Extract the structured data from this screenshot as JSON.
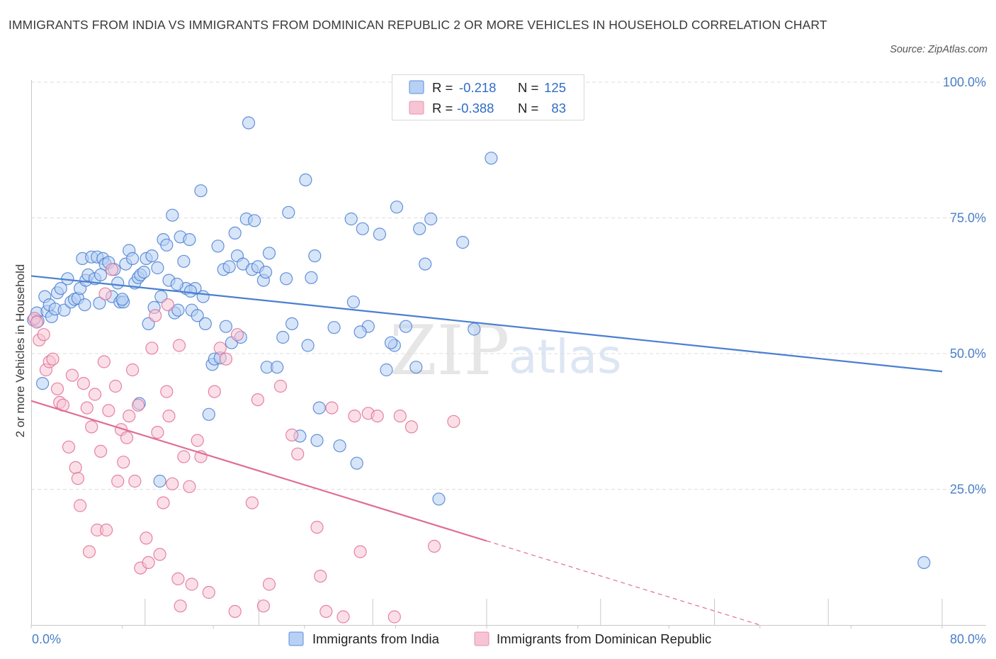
{
  "title": "IMMIGRANTS FROM INDIA VS IMMIGRANTS FROM DOMINICAN REPUBLIC 2 OR MORE VEHICLES IN HOUSEHOLD CORRELATION CHART",
  "source": "Source: ZipAtlas.com",
  "watermark": {
    "zip": "ZIP",
    "atlas": "atlas"
  },
  "legend": {
    "r_label": "R =",
    "n_label": "N =",
    "rows": [
      {
        "r": "-0.218",
        "n": "125",
        "color": "#5b8fdb",
        "fill": "#b7d0f4"
      },
      {
        "r": "-0.388",
        "n": "83",
        "color": "#e891ad",
        "fill": "#f7c4d4"
      }
    ]
  },
  "chart_data": {
    "type": "scatter",
    "ylabel": "2 or more Vehicles in Household",
    "xlabel": "",
    "xlim": [
      0,
      80
    ],
    "ylim": [
      0,
      100
    ],
    "x_tick_labels": [
      "0.0%",
      "80.0%"
    ],
    "y_ticks": [
      25,
      50,
      75,
      100
    ],
    "y_tick_labels": [
      "25.0%",
      "50.0%",
      "75.0%",
      "100.0%"
    ],
    "grid": "horizontal dashed",
    "legend_position": "top-center",
    "series": [
      {
        "name": "Immigrants from India",
        "color": "#4a7fd1",
        "fill": "#b7d0f4",
        "trend": {
          "x": [
            0,
            80
          ],
          "y": [
            64.3,
            46.7
          ],
          "solid_to": 80
        },
        "points": [
          [
            0.2,
            56.2
          ],
          [
            0.5,
            57.5
          ],
          [
            0.6,
            56.0
          ],
          [
            1.0,
            44.5
          ],
          [
            1.2,
            60.5
          ],
          [
            1.4,
            57.8
          ],
          [
            1.6,
            59.0
          ],
          [
            1.8,
            56.8
          ],
          [
            2.1,
            58.2
          ],
          [
            2.3,
            61.2
          ],
          [
            2.6,
            62.0
          ],
          [
            2.9,
            58.0
          ],
          [
            3.2,
            63.8
          ],
          [
            3.5,
            59.5
          ],
          [
            3.8,
            60.0
          ],
          [
            4.1,
            60.2
          ],
          [
            4.3,
            62.0
          ],
          [
            4.5,
            67.5
          ],
          [
            4.8,
            63.5
          ],
          [
            5.0,
            64.5
          ],
          [
            5.3,
            67.8
          ],
          [
            5.6,
            63.8
          ],
          [
            5.8,
            67.8
          ],
          [
            6.1,
            64.5
          ],
          [
            6.3,
            67.5
          ],
          [
            6.5,
            66.5
          ],
          [
            6.8,
            66.8
          ],
          [
            7.1,
            60.5
          ],
          [
            7.3,
            65.5
          ],
          [
            7.6,
            63.0
          ],
          [
            7.8,
            59.5
          ],
          [
            8.1,
            59.5
          ],
          [
            8.3,
            66.5
          ],
          [
            8.6,
            69.0
          ],
          [
            8.9,
            67.5
          ],
          [
            9.1,
            63.0
          ],
          [
            9.4,
            64.0
          ],
          [
            9.6,
            64.5
          ],
          [
            9.9,
            65.0
          ],
          [
            10.1,
            67.5
          ],
          [
            10.3,
            55.5
          ],
          [
            10.6,
            68.0
          ],
          [
            10.8,
            58.5
          ],
          [
            11.1,
            65.8
          ],
          [
            11.4,
            60.5
          ],
          [
            11.6,
            71.0
          ],
          [
            11.9,
            70.0
          ],
          [
            12.1,
            63.5
          ],
          [
            12.4,
            75.5
          ],
          [
            12.6,
            57.5
          ],
          [
            12.9,
            58.0
          ],
          [
            13.1,
            71.5
          ],
          [
            13.4,
            67.0
          ],
          [
            13.6,
            62.0
          ],
          [
            13.9,
            71.0
          ],
          [
            14.1,
            58.0
          ],
          [
            14.4,
            62.0
          ],
          [
            14.6,
            57.0
          ],
          [
            14.9,
            80.0
          ],
          [
            15.1,
            60.5
          ],
          [
            15.3,
            55.5
          ],
          [
            15.6,
            38.8
          ],
          [
            15.9,
            48.0
          ],
          [
            16.1,
            49.0
          ],
          [
            16.4,
            69.8
          ],
          [
            16.6,
            49.2
          ],
          [
            16.9,
            65.5
          ],
          [
            17.1,
            55.0
          ],
          [
            17.4,
            66.0
          ],
          [
            17.6,
            52.0
          ],
          [
            17.9,
            72.2
          ],
          [
            18.1,
            68.0
          ],
          [
            18.4,
            53.0
          ],
          [
            18.6,
            66.5
          ],
          [
            18.9,
            74.8
          ],
          [
            19.1,
            92.5
          ],
          [
            19.4,
            65.5
          ],
          [
            19.6,
            74.5
          ],
          [
            19.9,
            66.0
          ],
          [
            20.4,
            63.5
          ],
          [
            20.6,
            65.0
          ],
          [
            20.9,
            68.5
          ],
          [
            20.7,
            47.5
          ],
          [
            21.6,
            47.5
          ],
          [
            22.1,
            53.0
          ],
          [
            22.4,
            63.8
          ],
          [
            22.6,
            76.0
          ],
          [
            22.9,
            55.5
          ],
          [
            23.6,
            34.8
          ],
          [
            24.1,
            82.0
          ],
          [
            24.3,
            51.5
          ],
          [
            24.6,
            64.0
          ],
          [
            24.9,
            68.0
          ],
          [
            25.1,
            34.0
          ],
          [
            25.3,
            40.0
          ],
          [
            26.6,
            54.8
          ],
          [
            27.1,
            33.0
          ],
          [
            28.1,
            74.8
          ],
          [
            28.3,
            59.5
          ],
          [
            28.6,
            29.8
          ],
          [
            29.1,
            73.0
          ],
          [
            29.6,
            55.0
          ],
          [
            30.6,
            72.0
          ],
          [
            31.9,
            51.5
          ],
          [
            32.1,
            77.0
          ],
          [
            31.6,
            52.0
          ],
          [
            32.9,
            55.0
          ],
          [
            34.1,
            73.0
          ],
          [
            34.6,
            66.5
          ],
          [
            35.1,
            74.8
          ],
          [
            35.8,
            23.2
          ],
          [
            37.9,
            70.5
          ],
          [
            38.9,
            54.5
          ],
          [
            40.4,
            86.0
          ],
          [
            78.4,
            11.5
          ],
          [
            9.5,
            40.8
          ],
          [
            11.3,
            26.5
          ],
          [
            33.8,
            47.5
          ],
          [
            31.2,
            47.0
          ],
          [
            28.9,
            54.0
          ],
          [
            14.0,
            61.5
          ],
          [
            12.8,
            62.8
          ],
          [
            4.7,
            59.0
          ],
          [
            6.0,
            59.3
          ],
          [
            8.0,
            60.0
          ]
        ]
      },
      {
        "name": "Immigrants from Dominican Republic",
        "color": "#e06e96",
        "fill": "#f7c4d4",
        "trend": {
          "x": [
            0,
            64
          ],
          "y": [
            41.3,
            0
          ],
          "solid_to": 40
        },
        "points": [
          [
            0.3,
            56.5
          ],
          [
            0.5,
            55.8
          ],
          [
            0.7,
            52.5
          ],
          [
            1.1,
            53.5
          ],
          [
            1.3,
            47.0
          ],
          [
            1.6,
            48.5
          ],
          [
            1.9,
            49.0
          ],
          [
            2.3,
            43.5
          ],
          [
            2.5,
            41.0
          ],
          [
            2.8,
            40.5
          ],
          [
            3.3,
            32.8
          ],
          [
            3.6,
            46.0
          ],
          [
            3.9,
            29.0
          ],
          [
            4.1,
            27.0
          ],
          [
            4.3,
            22.0
          ],
          [
            4.6,
            44.5
          ],
          [
            4.9,
            40.0
          ],
          [
            5.1,
            13.5
          ],
          [
            5.3,
            36.5
          ],
          [
            5.6,
            42.5
          ],
          [
            5.8,
            17.5
          ],
          [
            6.1,
            32.0
          ],
          [
            6.4,
            48.5
          ],
          [
            6.6,
            17.5
          ],
          [
            6.8,
            39.5
          ],
          [
            7.1,
            65.5
          ],
          [
            7.4,
            44.0
          ],
          [
            7.6,
            26.5
          ],
          [
            7.9,
            36.0
          ],
          [
            8.1,
            30.0
          ],
          [
            8.4,
            34.5
          ],
          [
            8.6,
            38.5
          ],
          [
            8.9,
            47.0
          ],
          [
            9.1,
            26.5
          ],
          [
            9.4,
            40.5
          ],
          [
            9.6,
            10.5
          ],
          [
            10.1,
            16.0
          ],
          [
            10.3,
            11.5
          ],
          [
            10.6,
            51.0
          ],
          [
            10.9,
            57.0
          ],
          [
            11.1,
            35.5
          ],
          [
            11.3,
            13.0
          ],
          [
            11.6,
            22.5
          ],
          [
            11.9,
            43.0
          ],
          [
            12.1,
            38.5
          ],
          [
            12.4,
            26.0
          ],
          [
            12.9,
            8.5
          ],
          [
            13.1,
            3.5
          ],
          [
            13.4,
            31.0
          ],
          [
            13.9,
            25.5
          ],
          [
            14.1,
            7.5
          ],
          [
            14.6,
            34.0
          ],
          [
            14.9,
            31.0
          ],
          [
            15.6,
            6.0
          ],
          [
            16.1,
            43.0
          ],
          [
            16.6,
            51.0
          ],
          [
            17.1,
            49.0
          ],
          [
            17.9,
            2.5
          ],
          [
            18.1,
            53.5
          ],
          [
            19.4,
            22.5
          ],
          [
            19.9,
            41.5
          ],
          [
            20.4,
            3.5
          ],
          [
            20.9,
            7.5
          ],
          [
            21.9,
            44.0
          ],
          [
            22.9,
            35.0
          ],
          [
            23.4,
            31.5
          ],
          [
            25.1,
            18.0
          ],
          [
            25.4,
            9.0
          ],
          [
            25.9,
            2.5
          ],
          [
            26.4,
            40.0
          ],
          [
            27.4,
            1.5
          ],
          [
            28.4,
            38.5
          ],
          [
            28.9,
            13.5
          ],
          [
            29.6,
            39.0
          ],
          [
            30.4,
            38.5
          ],
          [
            31.9,
            1.5
          ],
          [
            32.4,
            38.5
          ],
          [
            33.4,
            36.5
          ],
          [
            35.4,
            14.5
          ],
          [
            37.1,
            37.5
          ],
          [
            6.5,
            61.0
          ],
          [
            13.0,
            51.5
          ],
          [
            12.0,
            59.0
          ]
        ]
      }
    ]
  },
  "bottom_legend": [
    {
      "label": "Immigrants from India",
      "color": "#5b8fdb",
      "fill": "#b7d0f4"
    },
    {
      "label": "Immigrants from Dominican Republic",
      "color": "#e891ad",
      "fill": "#f7c4d4"
    }
  ]
}
